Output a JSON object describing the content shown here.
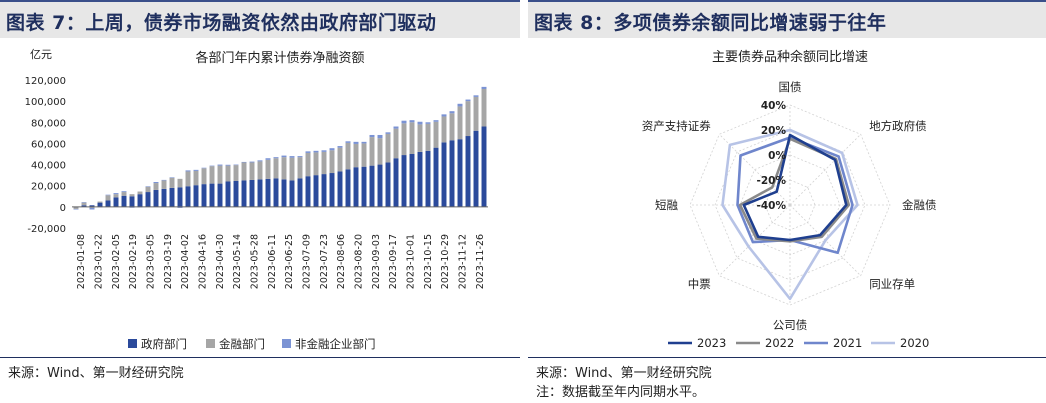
{
  "left": {
    "heading": "图表 7：上周，债券市场融资依然由政府部门驱动",
    "source": "来源：Wind、第一财经研究院"
  },
  "right": {
    "heading": "图表 8：多项债券余额同比增速弱于往年",
    "source": "来源：Wind、第一财经研究院",
    "note": "注：数据截至年内同期水平。"
  },
  "chart_data": [
    {
      "type": "bar",
      "stacked": true,
      "title": "各部门年内累计债券净融资额",
      "unit_label": "亿元",
      "ylim": [
        -20000,
        120000
      ],
      "yticks": [
        -20000,
        0,
        20000,
        40000,
        60000,
        80000,
        100000,
        120000
      ],
      "ytick_labels": [
        "-20,000",
        "0",
        "20,000",
        "40,000",
        "60,000",
        "80,000",
        "100,000",
        "120,000"
      ],
      "xtick_labels": [
        "2023-01-08",
        "2023-01-22",
        "2023-02-05",
        "2023-02-19",
        "2023-03-05",
        "2023-03-19",
        "2023-04-02",
        "2023-04-16",
        "2023-04-30",
        "2023-05-14",
        "2023-05-28",
        "2023-06-11",
        "2023-06-25",
        "2023-07-09",
        "2023-07-23",
        "2023-08-06",
        "2023-08-20",
        "2023-09-03",
        "2023-09-17",
        "2023-10-01",
        "2023-10-15",
        "2023-10-29",
        "2023-11-12",
        "2023-11-26"
      ],
      "grid": false,
      "legend_position": "bottom",
      "series": [
        {
          "name": "政府部门",
          "color": "#2b4a9b",
          "values": [
            -500,
            1500,
            1500,
            4000,
            6000,
            9000,
            10500,
            10000,
            12000,
            14000,
            16000,
            17000,
            18000,
            18500,
            19500,
            20500,
            21500,
            22000,
            22000,
            24000,
            24500,
            25000,
            25500,
            26000,
            26500,
            27000,
            26000,
            25000,
            27000,
            29000,
            30000,
            31000,
            32000,
            33500,
            35500,
            37500,
            38000,
            39000,
            40000,
            42000,
            46000,
            49000,
            50000,
            52000,
            53000,
            56000,
            61000,
            63000,
            64000,
            67000,
            72000,
            76000
          ]
        },
        {
          "name": "金融部门",
          "color": "#a6a6a6",
          "values": [
            -1500,
            2500,
            -1000,
            1000,
            5000,
            3000,
            3500,
            2000,
            2500,
            5000,
            6500,
            8000,
            9500,
            8000,
            14000,
            13500,
            15000,
            16500,
            17000,
            15000,
            15000,
            17000,
            16500,
            17000,
            18000,
            19000,
            21000,
            21500,
            20000,
            22000,
            21500,
            21000,
            21500,
            22500,
            25000,
            22000,
            22000,
            27000,
            25000,
            27000,
            28000,
            30000,
            30000,
            26000,
            25500,
            24500,
            24500,
            25500,
            31000,
            33000,
            32000,
            35500
          ]
        },
        {
          "name": "非金融企业部门",
          "color": "#7b93d4",
          "values": [
            -500,
            500,
            -1500,
            -200,
            500,
            1000,
            800,
            -800,
            -500,
            500,
            1000,
            500,
            500,
            -1000,
            1000,
            1000,
            500,
            500,
            1000,
            800,
            500,
            500,
            800,
            1000,
            1500,
            1000,
            1500,
            1500,
            1000,
            1500,
            1500,
            1500,
            2000,
            1500,
            1500,
            2000,
            1500,
            2000,
            3000,
            1500,
            2000,
            2500,
            2000,
            2500,
            1500,
            1500,
            2000,
            2000,
            2500,
            1500,
            1500,
            2000
          ]
        }
      ]
    },
    {
      "type": "radar",
      "title": "主要债券品种余额同比增速",
      "axes": [
        "国债",
        "地方政府债",
        "金融债",
        "同业存单",
        "公司债",
        "中票",
        "短融",
        "资产支持证券"
      ],
      "rlim": [
        -40,
        40
      ],
      "rticks": [
        -40,
        -20,
        0,
        20,
        40
      ],
      "rtick_labels": [
        "-40%",
        "-20%",
        "0%",
        "20%",
        "40%"
      ],
      "legend_position": "bottom",
      "series": [
        {
          "name": "2023",
          "color": "#1f3f8f",
          "values": [
            16,
            11,
            5,
            -6,
            -12,
            -4,
            -3,
            -25
          ]
        },
        {
          "name": "2022",
          "color": "#8a8a8a",
          "values": [
            13,
            12,
            7,
            -4,
            -11,
            -2,
            0,
            -20
          ]
        },
        {
          "name": "2021",
          "color": "#6f86cc",
          "values": [
            14,
            15,
            10,
            14,
            -12,
            2,
            2,
            16
          ]
        },
        {
          "name": "2020",
          "color": "#b7c3e6",
          "values": [
            20,
            19,
            14,
            0,
            35,
            7,
            14,
            28
          ]
        }
      ]
    }
  ]
}
